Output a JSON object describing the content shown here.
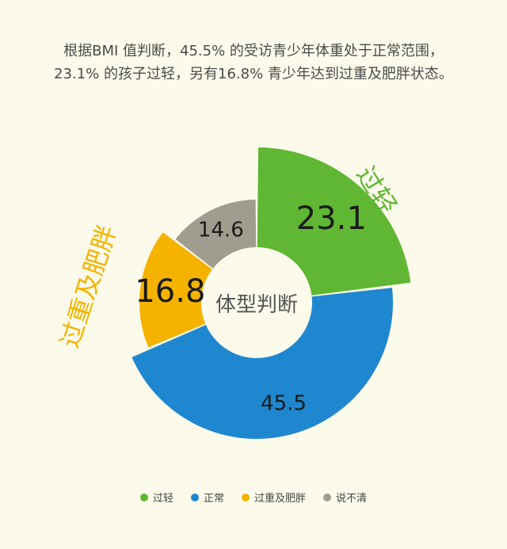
{
  "caption": {
    "line1": "根据BMI 值判断，45.5% 的受访青少年体重处于正常范围，",
    "line2": "23.1% 的孩子过轻，另有16.8% 青少年达到过重及肥胖状态。"
  },
  "chart_data": {
    "type": "pie",
    "variant": "exploded-donut",
    "center_label": "体型判断",
    "categories": [
      "过轻",
      "正常",
      "过重及肥胖",
      "说不清"
    ],
    "values": [
      23.1,
      45.5,
      16.8,
      14.6
    ],
    "value_labels": [
      "23.1",
      "45.5",
      "16.8",
      "14.6"
    ],
    "colors": [
      "#5fb733",
      "#1f87cf",
      "#f5b300",
      "#a19d8e"
    ],
    "legend_position": "bottom",
    "outer_labels": {
      "overweight": "过重及肥胖",
      "underweight": "过轻"
    }
  }
}
